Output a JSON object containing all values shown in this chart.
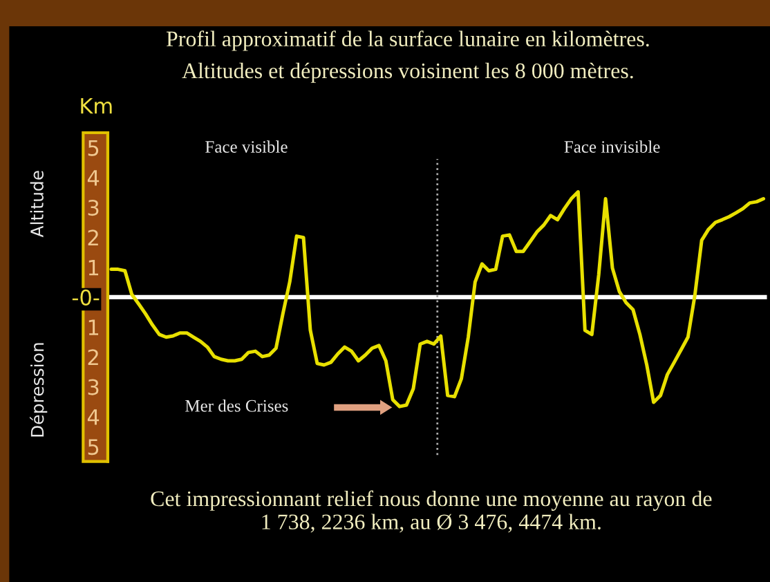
{
  "chart_data": {
    "type": "line",
    "title": "Profil approximatif de la surface lunaire en kilomètres.",
    "subtitle": "Altitudes et dépressions voisinent les 8 000 mètres.",
    "ylabel": "Altitude",
    "annotations": [
      "Km",
      "Face visible",
      "Face invisible",
      "Mer des Crises",
      "Dépression",
      "Cet impressionnant relief nous donne une moyenne au rayon de 1 738, 2236 km, au Ø 3 476, 4474 km."
    ],
    "categories": [
      null,
      null,
      null,
      null,
      null,
      null,
      null,
      null,
      null,
      null,
      null,
      null,
      null,
      null,
      null,
      null,
      null,
      null,
      null,
      null,
      null,
      null,
      null,
      null,
      null,
      null,
      null,
      null,
      null,
      null,
      null,
      null,
      null,
      null,
      null,
      null,
      null,
      null,
      null,
      null,
      null,
      null,
      null,
      null,
      null,
      null,
      null,
      null,
      null,
      null,
      null,
      null,
      null,
      null,
      null,
      null,
      null,
      null,
      null,
      null,
      null,
      null,
      null,
      null,
      null,
      null,
      null,
      null,
      null,
      null,
      null,
      null,
      null,
      null,
      null,
      null,
      null,
      null,
      null,
      null,
      null,
      null,
      null,
      null,
      null,
      null,
      null,
      null,
      null,
      null,
      null,
      null,
      null,
      null,
      null,
      null
    ],
    "series": [
      {
        "color": "#e8e000",
        "values": [
          0.93,
          0.93,
          0.88,
          0.09,
          -0.23,
          -0.56,
          -0.93,
          -1.25,
          -1.34,
          -1.3,
          -1.2,
          -1.2,
          -1.34,
          -1.48,
          -1.67,
          -1.99,
          -2.08,
          -2.13,
          -2.13,
          -2.08,
          -1.85,
          -1.81,
          -1.99,
          -1.94,
          -1.71,
          -0.56,
          0.51,
          2.04,
          1.99,
          -1.11,
          -2.22,
          -2.27,
          -2.18,
          -1.9,
          -1.67,
          -1.81,
          -2.13,
          -1.94,
          -1.71,
          -1.62,
          -2.13,
          -3.43,
          -3.66,
          -3.61,
          -3.06,
          -1.57,
          -1.48,
          -1.57,
          -1.3,
          -3.29,
          -3.33,
          -2.73,
          -1.34,
          0.51,
          1.11,
          0.88,
          0.93,
          2.04,
          2.08,
          1.53,
          1.53,
          1.85,
          2.18,
          2.41,
          2.73,
          2.59,
          2.96,
          3.29,
          3.52,
          -1.11,
          -1.25,
          0.74,
          3.29,
          0.97,
          0.19,
          -0.19,
          -0.42,
          -1.25,
          -2.27,
          -3.52,
          -3.29,
          -2.59,
          -2.18,
          -1.76,
          -1.34,
          0.05,
          1.9,
          2.27,
          2.5,
          2.59,
          2.69,
          2.82,
          2.96,
          3.15,
          3.19,
          3.29
        ]
      }
    ],
    "ylim": [
      -5.5,
      5.5
    ],
    "yticks": [
      {
        "value": 5,
        "label": "5"
      },
      {
        "value": 4,
        "label": "4"
      },
      {
        "value": 3,
        "label": "3"
      },
      {
        "value": 2,
        "label": "2"
      },
      {
        "value": 1,
        "label": "1"
      },
      {
        "value": 0,
        "label": "-0-"
      },
      {
        "value": -1,
        "label": "1"
      },
      {
        "value": -2,
        "label": "2"
      },
      {
        "value": -3,
        "label": "3"
      },
      {
        "value": -4,
        "label": "4"
      },
      {
        "value": -5,
        "label": "5"
      }
    ],
    "ref_lines": [
      {
        "axis": "y",
        "value": 0,
        "color": "#ffffff",
        "line_style": "solid"
      }
    ],
    "grid": false,
    "legend": false,
    "marker": "none",
    "line_style": "solid"
  }
}
